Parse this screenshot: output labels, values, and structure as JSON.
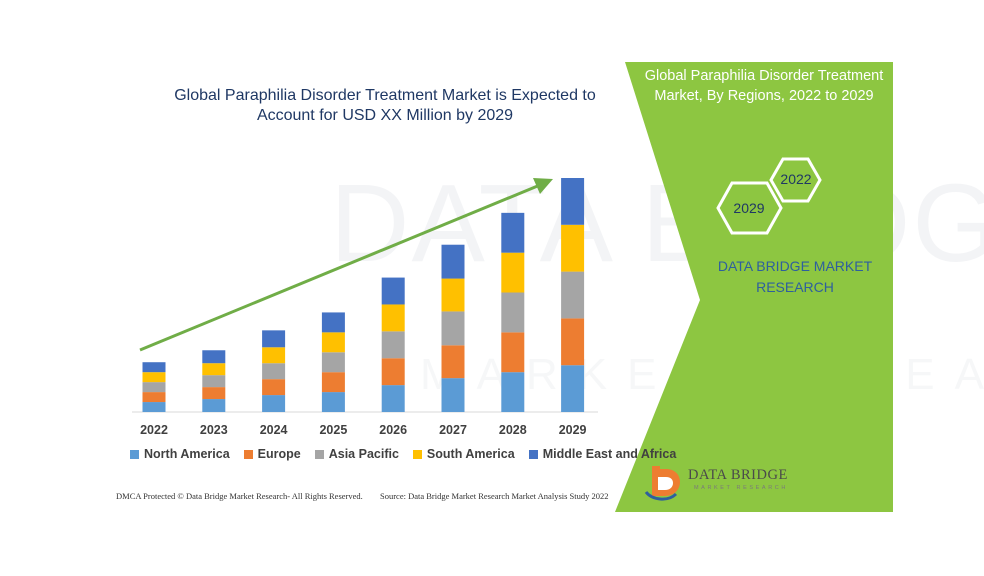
{
  "chart_data": {
    "type": "bar",
    "stacked": true,
    "title_lines": [
      "Global Paraphilia Disorder Treatment Market is Expected to",
      "Account for USD XX Million by 2029"
    ],
    "categories": [
      "2022",
      "2023",
      "2024",
      "2025",
      "2026",
      "2027",
      "2028",
      "2029"
    ],
    "series": [
      {
        "name": "North America",
        "color": "#5b9bd5",
        "values": [
          10,
          13,
          17,
          20,
          27,
          34,
          40,
          47
        ]
      },
      {
        "name": "Europe",
        "color": "#ed7d31",
        "values": [
          10,
          12,
          16,
          20,
          27,
          33,
          40,
          47
        ]
      },
      {
        "name": "Asia Pacific",
        "color": "#a5a5a5",
        "values": [
          10,
          12,
          16,
          20,
          27,
          34,
          40,
          47
        ]
      },
      {
        "name": "South America",
        "color": "#ffc000",
        "values": [
          10,
          12,
          16,
          20,
          27,
          33,
          40,
          47
        ]
      },
      {
        "name": "Middle East and Africa",
        "color": "#4472c4",
        "values": [
          10,
          13,
          17,
          20,
          27,
          34,
          40,
          47
        ]
      }
    ],
    "legend_position": "bottom",
    "trend_arrow_color": "#70ad47",
    "grid": false
  },
  "footer": {
    "left": "DMCA Protected © Data Bridge Market Research- All Rights Reserved.",
    "right": "Source: Data Bridge Market Research Market Analysis Study 2022"
  },
  "panel": {
    "title_lines": [
      "Global Paraphilia Disorder Treatment",
      "Market, By Regions, 2022 to 2029"
    ],
    "hex_years": [
      "2022",
      "2029"
    ],
    "brand_lines": [
      "DATA BRIDGE MARKET",
      "RESEARCH"
    ],
    "bg_color": "#8dc641"
  },
  "logo": {
    "name": "DATA BRIDGE",
    "sub": "MARKET RESEARCH"
  },
  "watermark": {
    "main": "DATA BRIDGE",
    "sub": "MARKET RESEARCH"
  }
}
